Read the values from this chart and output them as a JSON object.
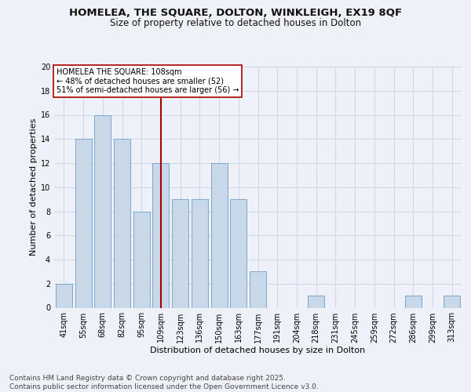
{
  "title1": "HOMELEA, THE SQUARE, DOLTON, WINKLEIGH, EX19 8QF",
  "title2": "Size of property relative to detached houses in Dolton",
  "xlabel": "Distribution of detached houses by size in Dolton",
  "ylabel": "Number of detached properties",
  "categories": [
    "41sqm",
    "55sqm",
    "68sqm",
    "82sqm",
    "95sqm",
    "109sqm",
    "123sqm",
    "136sqm",
    "150sqm",
    "163sqm",
    "177sqm",
    "191sqm",
    "204sqm",
    "218sqm",
    "231sqm",
    "245sqm",
    "259sqm",
    "272sqm",
    "286sqm",
    "299sqm",
    "313sqm"
  ],
  "values": [
    2,
    14,
    16,
    14,
    8,
    12,
    9,
    9,
    12,
    9,
    3,
    0,
    0,
    1,
    0,
    0,
    0,
    0,
    1,
    0,
    1
  ],
  "bar_color": "#c8d8e8",
  "bar_edge_color": "#7aa8cc",
  "vline_x_index": 5,
  "vline_color": "#aa0000",
  "annotation_text": "HOMELEA THE SQUARE: 108sqm\n← 48% of detached houses are smaller (52)\n51% of semi-detached houses are larger (56) →",
  "annotation_box_color": "#ffffff",
  "annotation_box_edge_color": "#aa0000",
  "ylim": [
    0,
    20
  ],
  "yticks": [
    0,
    2,
    4,
    6,
    8,
    10,
    12,
    14,
    16,
    18,
    20
  ],
  "grid_color": "#d0d8e8",
  "background_color": "#eef2f8",
  "footer_text": "Contains HM Land Registry data © Crown copyright and database right 2025.\nContains public sector information licensed under the Open Government Licence v3.0.",
  "title_fontsize": 9.5,
  "subtitle_fontsize": 8.5,
  "axis_label_fontsize": 8,
  "tick_fontsize": 7,
  "annotation_fontsize": 7,
  "footer_fontsize": 6.5
}
